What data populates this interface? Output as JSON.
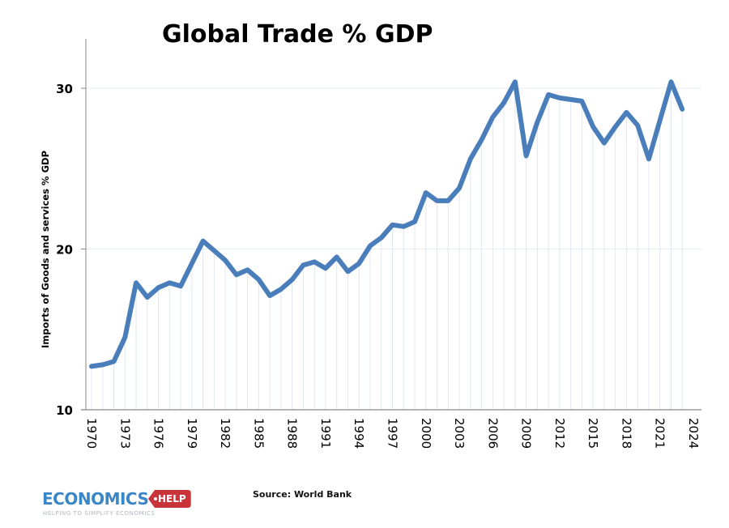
{
  "chart_data": {
    "type": "line",
    "title": "Global Trade % GDP",
    "xlabel": "",
    "ylabel": "Imports of Goods and services % GDP",
    "ylim": [
      10,
      33
    ],
    "yticks": [
      10,
      20,
      30
    ],
    "xlim": [
      1970,
      2024
    ],
    "xticks": [
      1970,
      1973,
      1976,
      1979,
      1982,
      1985,
      1988,
      1991,
      1994,
      1997,
      2000,
      2003,
      2006,
      2009,
      2012,
      2015,
      2018,
      2021,
      2024
    ],
    "grid": {
      "horizontal": true,
      "vertical": true
    },
    "legend": "none",
    "series": [
      {
        "name": "Imports of Goods and services % GDP",
        "color": "#4a7ebb",
        "x": [
          1970,
          1971,
          1972,
          1973,
          1974,
          1975,
          1976,
          1977,
          1978,
          1979,
          1980,
          1981,
          1982,
          1983,
          1984,
          1985,
          1986,
          1987,
          1988,
          1989,
          1990,
          1991,
          1992,
          1993,
          1994,
          1995,
          1996,
          1997,
          1998,
          1999,
          2000,
          2001,
          2002,
          2003,
          2004,
          2005,
          2006,
          2007,
          2008,
          2009,
          2010,
          2011,
          2012,
          2013,
          2014,
          2015,
          2016,
          2017,
          2018,
          2019,
          2020,
          2021,
          2022,
          2023
        ],
        "values": [
          12.7,
          12.8,
          13.0,
          14.5,
          17.9,
          17.0,
          17.6,
          17.9,
          17.7,
          19.1,
          20.5,
          19.9,
          19.3,
          18.4,
          18.7,
          18.1,
          17.1,
          17.5,
          18.1,
          19.0,
          19.2,
          18.8,
          19.5,
          18.6,
          19.1,
          20.2,
          20.7,
          21.5,
          21.4,
          21.7,
          23.5,
          23.0,
          23.0,
          23.8,
          25.6,
          26.8,
          28.2,
          29.1,
          30.4,
          25.8,
          27.9,
          29.6,
          29.4,
          29.3,
          29.2,
          27.6,
          26.6,
          27.6,
          28.5,
          27.7,
          25.6,
          28.0,
          30.4,
          28.7
        ]
      }
    ]
  },
  "footer": {
    "source": "Source: World Bank",
    "logo_main": "ECONOMICS",
    "logo_tag": "HELP",
    "logo_sub": "HELPING TO SIMPLIFY ECONOMICS"
  },
  "colors": {
    "line": "#4a7ebb",
    "gridline": "#dfe8ef",
    "axis": "#888888",
    "logo_blue": "#3a86c6",
    "logo_red": "#c9333a"
  }
}
